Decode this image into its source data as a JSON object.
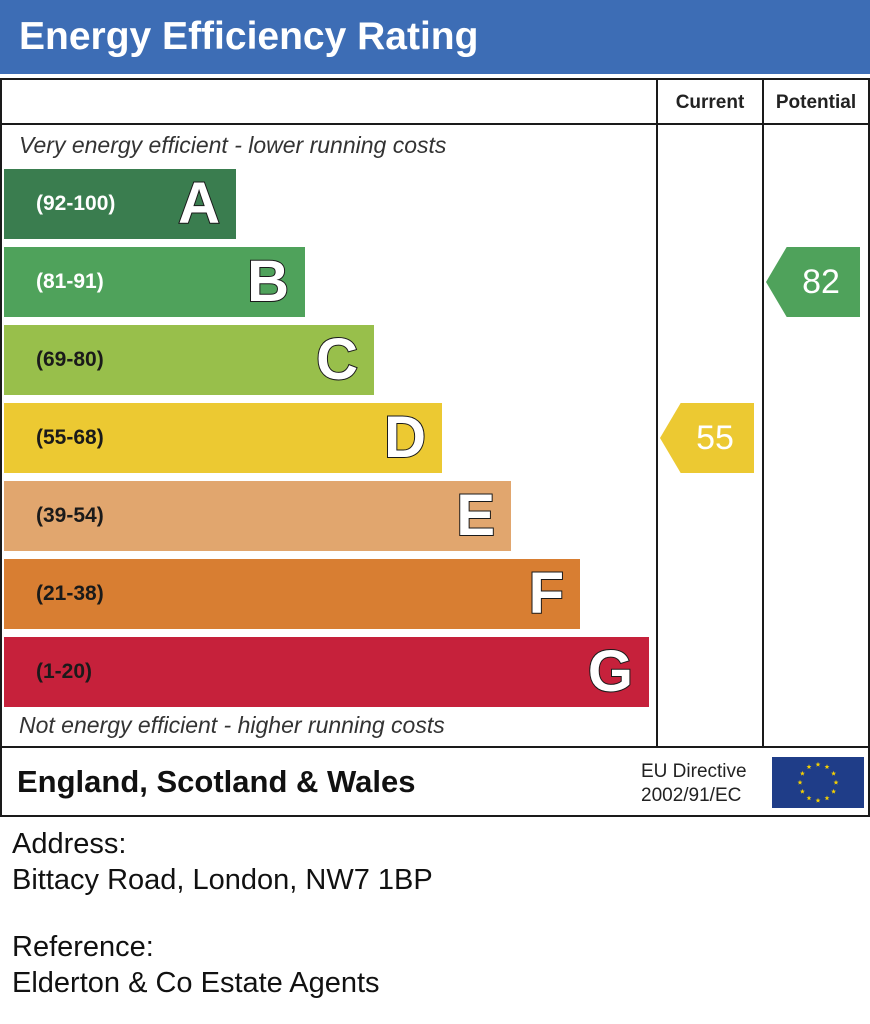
{
  "title": "Energy Efficiency Rating",
  "columns": {
    "current": "Current",
    "potential": "Potential"
  },
  "captions": {
    "top": "Very energy efficient - lower running costs",
    "bottom": "Not energy efficient - higher running costs"
  },
  "chart_data": {
    "type": "bar",
    "categories": [
      "A",
      "B",
      "C",
      "D",
      "E",
      "F",
      "G"
    ],
    "ranges": [
      "(92-100)",
      "(81-91)",
      "(69-80)",
      "(55-68)",
      "(39-54)",
      "(21-38)",
      "(1-20)"
    ],
    "colors": [
      "#3a7d4f",
      "#4fa25b",
      "#98bf4b",
      "#ecc932",
      "#e1a66e",
      "#d87e32",
      "#c6213b"
    ],
    "range_colors": [
      "#ffffff",
      "#ffffff",
      "#1a1a1a",
      "#1a1a1a",
      "#1a1a1a",
      "#1a1a1a",
      "#1a1a1a"
    ],
    "current": {
      "value": 55,
      "band": "D",
      "color": "#ecc932"
    },
    "potential": {
      "value": 82,
      "band": "B",
      "color": "#4fa25b"
    }
  },
  "footer": {
    "region": "England, Scotland & Wales",
    "directive_line1": "EU Directive",
    "directive_line2": "2002/91/EC",
    "flag_color": "#1f3d88",
    "star_color": "#f5d000"
  },
  "address": {
    "label": "Address:",
    "value": "Bittacy Road, London, NW7 1BP"
  },
  "reference": {
    "label": "Reference:",
    "value": "Elderton & Co Estate Agents"
  }
}
